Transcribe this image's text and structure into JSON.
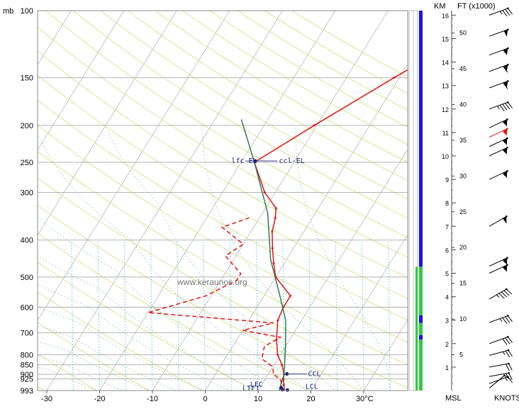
{
  "chart_data": {
    "type": "line",
    "title": "",
    "pressure_unit_label": "mb",
    "temperature_unit_label": "30°C",
    "height_labels": {
      "km": "KM",
      "ft": "FT (x1000)",
      "msl": "MSL",
      "knots": "KNOTS"
    },
    "watermark": "www.keraunos.org",
    "pressure_ticks": [
      100,
      150,
      200,
      250,
      300,
      400,
      500,
      600,
      700,
      800,
      850,
      900,
      925,
      993
    ],
    "temperature_ticks": [
      -30,
      -20,
      -10,
      0,
      10,
      20
    ],
    "xlim": [
      -32,
      40
    ],
    "ylim": [
      993,
      100
    ],
    "km_ticks": [
      1,
      2,
      3,
      4,
      5,
      6,
      7,
      8,
      9,
      10,
      11,
      12,
      13,
      14,
      15,
      16
    ],
    "ft_ticks": [
      5,
      10,
      15,
      20,
      25,
      30,
      35,
      40,
      45,
      50
    ],
    "series": [
      {
        "name": "",
        "style": "solid",
        "color": "#e81010",
        "points": [
          [
            15,
            993
          ],
          [
            14.2,
            960
          ],
          [
            13.5,
            930
          ],
          [
            13,
            900
          ],
          [
            11.5,
            850
          ],
          [
            9.5,
            800
          ],
          [
            7.5,
            730
          ],
          [
            5.5,
            650
          ],
          [
            5,
            600
          ],
          [
            5,
            560
          ],
          [
            0,
            500
          ],
          [
            -2,
            460
          ],
          [
            -4,
            420
          ],
          [
            -6,
            380
          ],
          [
            -7,
            350
          ],
          [
            -8,
            330
          ],
          [
            -12,
            300
          ],
          [
            -17.5,
            250
          ],
          [
            -10.5,
            200
          ],
          [
            -1,
            150
          ],
          [
            13,
            100
          ]
        ]
      },
      {
        "name": "",
        "style": "dashed",
        "color": "#e81010",
        "points": [
          [
            14.5,
            993
          ],
          [
            13.5,
            950
          ],
          [
            13,
            930
          ],
          [
            11,
            900
          ],
          [
            10,
            860
          ],
          [
            7,
            820
          ],
          [
            6,
            760
          ],
          [
            8,
            720
          ],
          [
            0,
            690
          ],
          [
            5,
            660
          ],
          [
            -20,
            620
          ],
          [
            -11,
            560
          ],
          [
            -7,
            510
          ],
          [
            -7,
            490
          ],
          [
            -12,
            440
          ],
          [
            -10,
            410
          ],
          [
            -16,
            370
          ],
          [
            -12,
            350
          ]
        ]
      },
      {
        "name": "",
        "style": "solid",
        "color": "#2e7d4f",
        "points": [
          [
            14,
            993
          ],
          [
            13,
            900
          ],
          [
            12,
            850
          ],
          [
            10,
            760
          ],
          [
            7,
            650
          ],
          [
            3,
            560
          ],
          [
            -3,
            450
          ],
          [
            -9,
            340
          ],
          [
            -17.5,
            250
          ],
          [
            -25,
            193
          ]
        ]
      }
    ],
    "annotations": [
      {
        "text": "lfc-EL",
        "t": -22,
        "p": 248
      },
      {
        "text": "ccl-EL",
        "t": -13,
        "p": 248
      },
      {
        "text": "CCL",
        "t": 17.5,
        "p": 898
      },
      {
        "text": "LFC",
        "t": 7.8,
        "p": 958
      },
      {
        "text": "LCL",
        "t": 18.5,
        "p": 970
      },
      {
        "text": "LIFT",
        "t": 6.8,
        "p": 980
      }
    ],
    "special_points": [
      {
        "t": -17.5,
        "p": 248
      },
      {
        "t": 13.5,
        "p": 898
      },
      {
        "t": 14.5,
        "p": 988
      },
      {
        "t": 15.5,
        "p": 990
      },
      {
        "t": 14.0,
        "p": 975
      }
    ],
    "grid": true,
    "status_column": [
      {
        "from": 100,
        "to": 470,
        "color": "#1515e6"
      },
      {
        "from": 470,
        "to": 630,
        "color": "#2ecc40"
      },
      {
        "from": 630,
        "to": 660,
        "color": "#1515e6"
      },
      {
        "from": 660,
        "to": 710,
        "color": "#2ecc40"
      },
      {
        "from": 710,
        "to": 730,
        "color": "#1515e6"
      },
      {
        "from": 730,
        "to": 993,
        "color": "#2ecc40"
      }
    ],
    "wind_barbs": [
      {
        "km": 16.0,
        "dir": 250,
        "spd": 35
      },
      {
        "km": 15.1,
        "dir": 250,
        "spd": 50
      },
      {
        "km": 14.3,
        "dir": 250,
        "spd": 55
      },
      {
        "km": 13.6,
        "dir": 250,
        "spd": 60
      },
      {
        "km": 12.9,
        "dir": 250,
        "spd": 60
      },
      {
        "km": 12.0,
        "dir": 250,
        "spd": 45
      },
      {
        "km": 11.2,
        "dir": 245,
        "spd": 55
      },
      {
        "km": 10.8,
        "dir": 245,
        "spd": 55,
        "color": "#e81010"
      },
      {
        "km": 10.4,
        "dir": 245,
        "spd": 55
      },
      {
        "km": 10.0,
        "dir": 245,
        "spd": 55
      },
      {
        "km": 9.0,
        "dir": 245,
        "spd": 55
      },
      {
        "km": 7.0,
        "dir": 240,
        "spd": 50
      },
      {
        "km": 5.3,
        "dir": 245,
        "spd": 55
      },
      {
        "km": 5.0,
        "dir": 245,
        "spd": 55
      },
      {
        "km": 3.9,
        "dir": 240,
        "spd": 45
      },
      {
        "km": 2.9,
        "dir": 250,
        "spd": 35
      },
      {
        "km": 2.0,
        "dir": 250,
        "spd": 30
      },
      {
        "km": 1.5,
        "dir": 255,
        "spd": 25
      },
      {
        "km": 1.0,
        "dir": 260,
        "spd": 20
      },
      {
        "km": 0.6,
        "dir": 260,
        "spd": 15
      },
      {
        "km": 0.3,
        "dir": 250,
        "spd": 15
      },
      {
        "km": 0.1,
        "dir": 230,
        "spd": 10
      }
    ]
  }
}
